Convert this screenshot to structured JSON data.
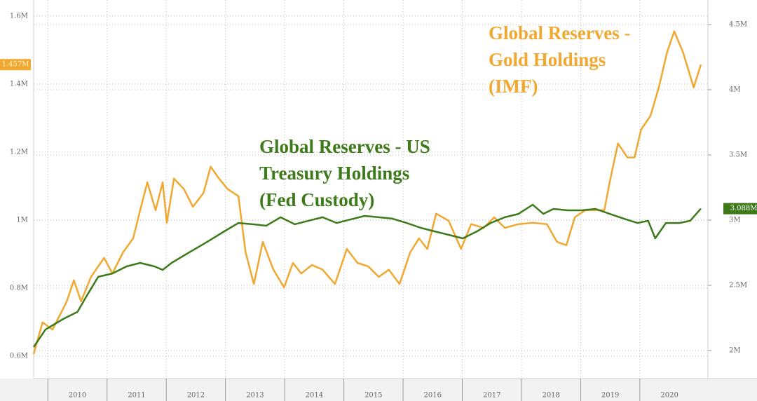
{
  "chart_data": {
    "type": "line",
    "annotations": [
      {
        "lines": [
          "Global Reserves - US",
          "Treasury Holdings",
          "(Fed Custody)"
        ],
        "color": "#3d7a1a"
      },
      {
        "lines": [
          "Global Reserves -",
          "Gold Holdings",
          "(IMF)"
        ],
        "color": "#f0a830"
      }
    ],
    "xlim": [
      2009.76,
      2021.15
    ],
    "xticks": [
      2010,
      2011,
      2012,
      2013,
      2014,
      2015,
      2016,
      2017,
      2018,
      2019,
      2020
    ],
    "ylim": [
      0.534,
      1.647
    ],
    "yticks": [
      {
        "value": 0.6,
        "label": "0.6M"
      },
      {
        "value": 0.8,
        "label": "0.8M"
      },
      {
        "value": 1,
        "label": "1M"
      },
      {
        "value": 1.2,
        "label": "1.2M"
      },
      {
        "value": 1.4,
        "label": "1.4M"
      },
      {
        "value": 1.6,
        "label": "1.6M"
      }
    ],
    "y2lim": [
      1.785,
      4.688
    ],
    "y2ticks": [
      {
        "value": 2,
        "label": "2M"
      },
      {
        "value": 2.5,
        "label": "2.5M"
      },
      {
        "value": 3,
        "label": "3M"
      },
      {
        "value": 3.5,
        "label": "3.5M"
      },
      {
        "value": 4,
        "label": "4M"
      },
      {
        "value": 4.5,
        "label": "4.5M"
      }
    ],
    "grid": true,
    "series": [
      {
        "name": "Global Reserves - Gold Holdings (IMF)",
        "color": "#f0a830",
        "axis": "y",
        "end_label": "1.457M",
        "x": [
          2009.76,
          2009.91,
          2010.08,
          2010.32,
          2010.44,
          2010.56,
          2010.73,
          2010.95,
          2011.09,
          2011.27,
          2011.44,
          2011.56,
          2011.68,
          2011.82,
          2011.94,
          2012.01,
          2012.13,
          2012.3,
          2012.45,
          2012.63,
          2012.75,
          2012.89,
          2013.04,
          2013.22,
          2013.34,
          2013.48,
          2013.63,
          2013.81,
          2013.99,
          2014.14,
          2014.28,
          2014.46,
          2014.64,
          2014.85,
          2015.05,
          2015.23,
          2015.41,
          2015.59,
          2015.76,
          2015.94,
          2016.12,
          2016.27,
          2016.41,
          2016.56,
          2016.77,
          2016.98,
          2017.15,
          2017.36,
          2017.54,
          2017.72,
          2017.95,
          2018.19,
          2018.43,
          2018.6,
          2018.76,
          2018.9,
          2019.08,
          2019.25,
          2019.4,
          2019.49,
          2019.63,
          2019.79,
          2019.91,
          2020.02,
          2020.18,
          2020.32,
          2020.46,
          2020.58,
          2020.73,
          2020.91,
          2021.03
        ],
        "values": [
          0.606,
          0.699,
          0.678,
          0.761,
          0.823,
          0.761,
          0.833,
          0.889,
          0.843,
          0.905,
          0.946,
          1.029,
          1.111,
          1.029,
          1.111,
          0.992,
          1.122,
          1.091,
          1.039,
          1.08,
          1.157,
          1.122,
          1.091,
          1.07,
          0.905,
          0.812,
          0.936,
          0.854,
          0.802,
          0.874,
          0.843,
          0.868,
          0.854,
          0.812,
          0.915,
          0.874,
          0.864,
          0.833,
          0.854,
          0.812,
          0.905,
          0.946,
          0.915,
          1.019,
          0.998,
          0.915,
          0.988,
          0.977,
          1.008,
          0.977,
          0.988,
          0.992,
          0.988,
          0.936,
          0.926,
          1.008,
          1.029,
          1.029,
          1.029,
          1.111,
          1.225,
          1.184,
          1.184,
          1.266,
          1.307,
          1.39,
          1.493,
          1.555,
          1.493,
          1.39,
          1.457
        ]
      },
      {
        "name": "Global Reserves - US Treasury Holdings (Fed Custody)",
        "color": "#3d7a1a",
        "axis": "y2",
        "end_label": "3.088M",
        "x": [
          2009.76,
          2009.96,
          2010.26,
          2010.5,
          2010.67,
          2010.85,
          2011.09,
          2011.33,
          2011.56,
          2011.8,
          2011.94,
          2012.09,
          2012.39,
          2012.69,
          2012.98,
          2013.22,
          2013.46,
          2013.69,
          2013.93,
          2014.17,
          2014.4,
          2014.64,
          2014.88,
          2015.11,
          2015.35,
          2015.59,
          2015.82,
          2016.06,
          2016.3,
          2016.53,
          2016.77,
          2017.01,
          2017.25,
          2017.48,
          2017.72,
          2017.95,
          2018.19,
          2018.37,
          2018.54,
          2018.78,
          2019.02,
          2019.25,
          2019.49,
          2019.73,
          2019.96,
          2020.14,
          2020.26,
          2020.44,
          2020.67,
          2020.85,
          2021.03
        ],
        "values": [
          2.027,
          2.161,
          2.242,
          2.296,
          2.43,
          2.565,
          2.591,
          2.645,
          2.672,
          2.645,
          2.618,
          2.672,
          2.753,
          2.833,
          2.914,
          2.978,
          2.968,
          2.957,
          3.022,
          2.968,
          2.995,
          3.022,
          2.978,
          3.005,
          3.032,
          3.022,
          3.011,
          2.978,
          2.941,
          2.914,
          2.887,
          2.86,
          2.914,
          2.978,
          3.022,
          3.048,
          3.118,
          3.048,
          3.086,
          3.075,
          3.075,
          3.086,
          3.048,
          3.011,
          2.978,
          2.995,
          2.86,
          2.978,
          2.978,
          2.995,
          3.088
        ]
      }
    ]
  }
}
